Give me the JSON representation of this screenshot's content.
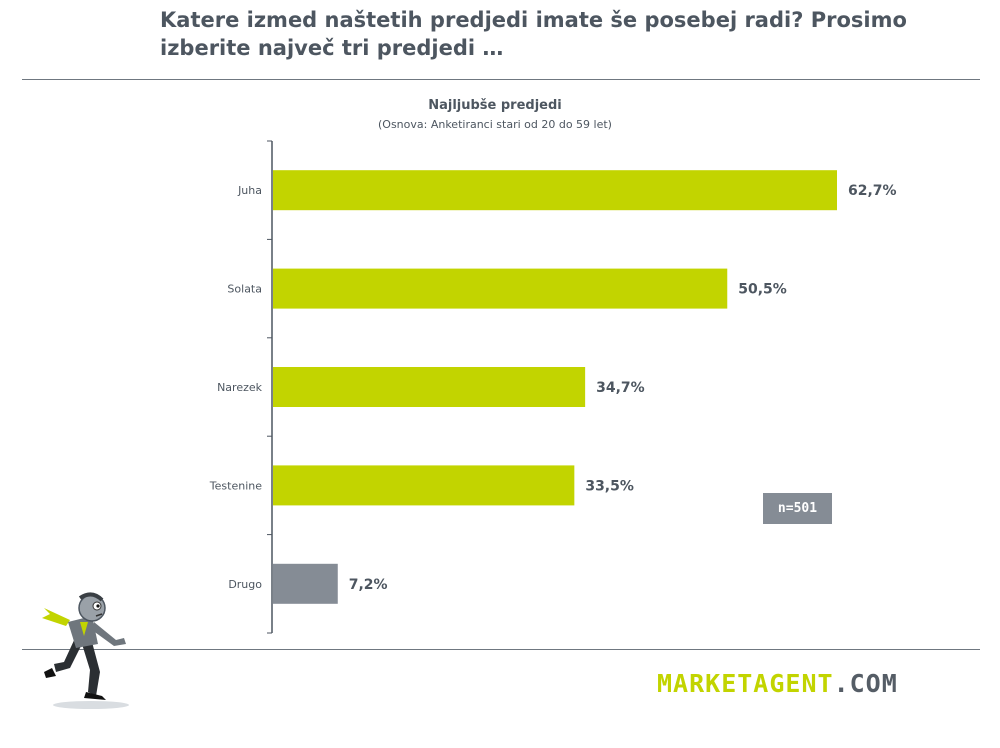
{
  "header": {
    "title_line1": "Katere izmed naštetih predjedi imate še posebej radi? Prosimo",
    "title_line2": "izberite največ tri predjedi …"
  },
  "chart_data": {
    "type": "bar",
    "orientation": "horizontal",
    "title": "Najljubše predjedi",
    "subtitle": "(Osnova: Anketiranci stari od 20 do 59 let)",
    "categories": [
      "Juha",
      "Solata",
      "Narezek",
      "Testenine",
      "Drugo"
    ],
    "values": [
      62.7,
      50.5,
      34.7,
      33.5,
      7.2
    ],
    "value_labels": [
      "62,7%",
      "50,5%",
      "34,7%",
      "33,5%",
      "7,2%"
    ],
    "colors": [
      "#c2d400",
      "#c2d400",
      "#c2d400",
      "#c2d400",
      "#858c95"
    ],
    "xlim": [
      0,
      62.7
    ],
    "grid": false,
    "annotation": "n=501"
  },
  "logo": {
    "main": "MARKETAGENT",
    "tld": ".COM"
  },
  "colors": {
    "accent": "#c2d400",
    "neutral": "#858c95",
    "text": "#4d5660"
  },
  "icons": {
    "mascot": "running-businessman-icon"
  }
}
